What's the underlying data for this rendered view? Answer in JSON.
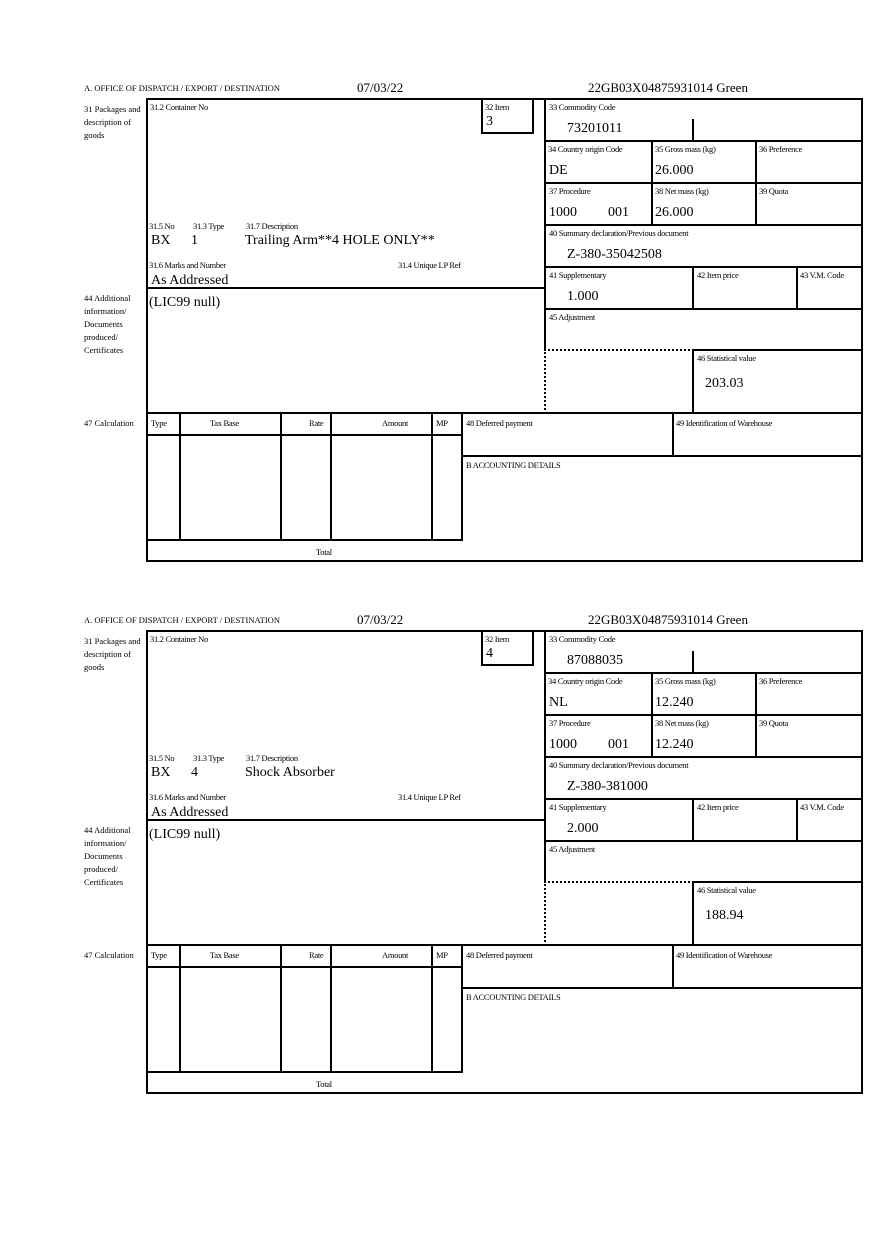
{
  "labels": {
    "office": "A. OFFICE OF DISPATCH / EXPORT / DESTINATION",
    "box31": "31 Packages and description of goods",
    "box31_2": "31.2 Container No",
    "box32": "32 Item",
    "box33": "33 Commodity Code",
    "box34": "34 Country origin Code",
    "box35": "35 Gross mass (kg)",
    "box36": "36 Preference",
    "box37": "37 Procedure",
    "box38": "38 Net mass (kg)",
    "box39": "39 Quota",
    "box40": "40 Summary declaration/Previous document",
    "box41": "41 Supplementary",
    "box42": "42 Item price",
    "box43": "43 V.M. Code",
    "box45": "45 Adjustment",
    "box46": "46 Statistical value",
    "box31_5": "31.5 No",
    "box31_3": "31.3 Type",
    "box31_7": "31.7 Description",
    "box31_6": "31.6 Marks and Number",
    "box31_4": "31.4 Unique LP Ref",
    "box44": "44 Additional information/ Documents produced/ Certificates",
    "box47": "47 Calculation",
    "col_type": "Type",
    "col_tax_base": "Tax Base",
    "col_rate": "Rate",
    "col_amount": "Amount",
    "col_mp": "MP",
    "box48": "48 Deferred payment",
    "box49": "49 Identification of Warehouse",
    "boxB": "B ACCOUNTING DETAILS",
    "total": "Total"
  },
  "items": [
    {
      "date": "07/03/22",
      "reference": "22GB03X04875931014   Green",
      "item_no": "3",
      "commodity_code": "73201011",
      "country_origin": "DE",
      "gross_mass": "26.000",
      "procedure_1": "1000",
      "procedure_2": "001",
      "net_mass": "26.000",
      "previous_document": "Z-380-35042508",
      "supplementary": "1.000",
      "statistical_value": "203.03",
      "package_kind": "BX",
      "package_count": "1",
      "description": "Trailing Arm**4 HOLE ONLY**",
      "marks": "As Addressed",
      "additional_info": "(LIC99 null)"
    },
    {
      "date": "07/03/22",
      "reference": "22GB03X04875931014   Green",
      "item_no": "4",
      "commodity_code": "87088035",
      "country_origin": "NL",
      "gross_mass": "12.240",
      "procedure_1": "1000",
      "procedure_2": "001",
      "net_mass": "12.240",
      "previous_document": "Z-380-381000",
      "supplementary": "2.000",
      "statistical_value": "188.94",
      "package_kind": "BX",
      "package_count": "4",
      "description": "Shock Absorber",
      "marks": "As Addressed",
      "additional_info": "(LIC99 null)"
    }
  ]
}
